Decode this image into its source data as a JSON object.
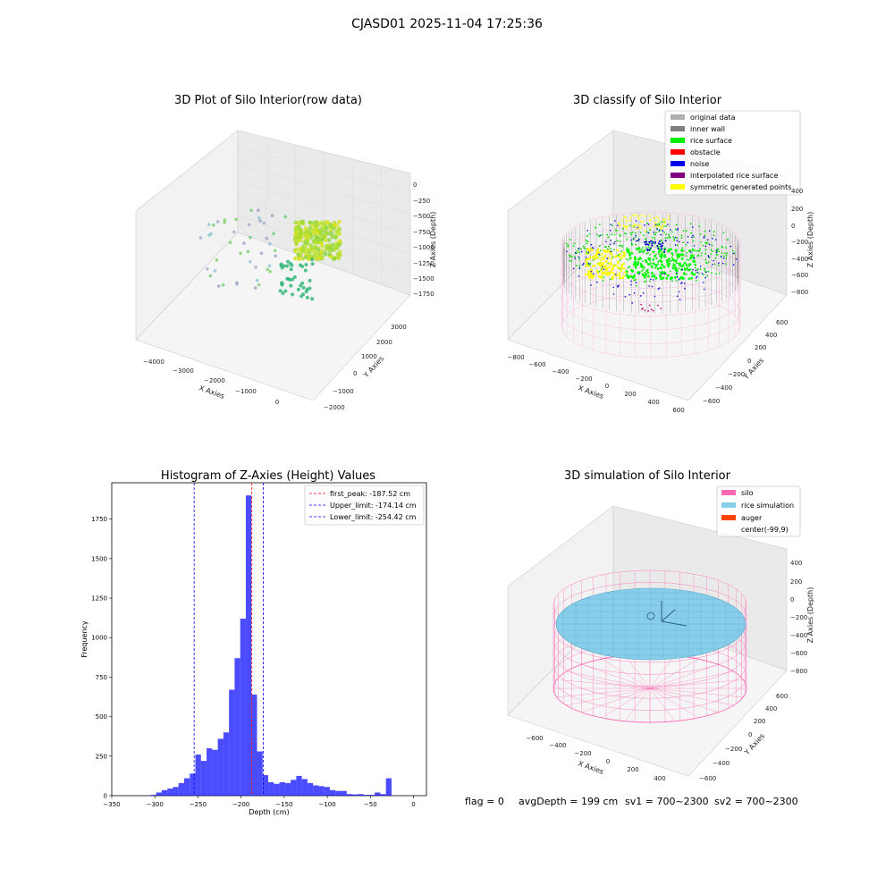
{
  "suptitle": "CJASD01 2025-11-04 17:25:36",
  "footer": {
    "flag": "flag = 0",
    "avg": "avgDepth = 199 cm",
    "sv1": "sv1 = 700~2300",
    "sv2": "sv2 = 700~2300"
  },
  "colors": {
    "hist_bar": "#0000ff",
    "peak_line": "#ff0000",
    "limit_line": "#0000ff",
    "silo_wire": "#ff69b4",
    "rice_sim": "#87ceeb",
    "auger": "#ff4500"
  },
  "plot3d_raw": {
    "title": "3D Plot of Silo Interior(row data)",
    "xlabel": "X Axies",
    "ylabel": "Y Axies",
    "zlabel": "Z Axies (Depth)",
    "xticks": [
      "−4000",
      "−3000",
      "−2000",
      "−1000",
      "0"
    ],
    "yticks": [
      "−2000",
      "−1000",
      "0",
      "1000",
      "2000",
      "3000"
    ],
    "zticks": [
      "0",
      "−250",
      "−500",
      "−750",
      "−1000",
      "−1250",
      "−1500",
      "−1750"
    ]
  },
  "plot3d_classify": {
    "title": "3D classify of Silo Interior",
    "xlabel": "X Axies",
    "ylabel": "Y Axies",
    "zlabel": "Z Axies (Depth)",
    "xticks": [
      "−800",
      "−600",
      "−400",
      "−200",
      "0",
      "200",
      "400",
      "600"
    ],
    "yticks": [
      "−600",
      "−400",
      "−200",
      "0",
      "200",
      "400",
      "600"
    ],
    "zticks": [
      "400",
      "200",
      "0",
      "−200",
      "−400",
      "−600",
      "−800"
    ],
    "legend": [
      {
        "label": "original data",
        "color": "#b0b0b0"
      },
      {
        "label": "inner wall",
        "color": "#808080"
      },
      {
        "label": "rice surface",
        "color": "#00ee00"
      },
      {
        "label": "obstacle",
        "color": "#ff0000"
      },
      {
        "label": "noise",
        "color": "#0000ee"
      },
      {
        "label": "interpolated rice surface",
        "color": "#800080"
      },
      {
        "label": "symmetric generated points",
        "color": "#ffff00"
      }
    ]
  },
  "plot3d_sim": {
    "title": "3D simulation of Silo Interior",
    "xlabel": "X Axies",
    "ylabel": "Y Axies",
    "zlabel": "Z Axies (Depth)",
    "xticks": [
      "−600",
      "−400",
      "−200",
      "0",
      "200",
      "400"
    ],
    "yticks": [
      "−600",
      "−400",
      "−200",
      "0",
      "200",
      "400",
      "600"
    ],
    "zticks": [
      "400",
      "200",
      "0",
      "−200",
      "−400",
      "−600",
      "−800"
    ],
    "legend": [
      {
        "label": "silo",
        "color": "#ff69b4"
      },
      {
        "label": "rice simulation",
        "color": "#87ceeb"
      },
      {
        "label": "auger",
        "color": "#ff4500"
      },
      {
        "label": "center(-99,9)",
        "color": ""
      }
    ]
  },
  "chart_data": {
    "type": "bar",
    "title": "Histogram of Z-Axies (Height) Values",
    "xlabel": "Depth (cm)",
    "ylabel": "Frequency",
    "xlim": [
      -350,
      15
    ],
    "ylim": [
      0,
      1980
    ],
    "xticks": [
      -350,
      -300,
      -250,
      -200,
      -150,
      -100,
      -50,
      0
    ],
    "yticks": [
      0,
      250,
      500,
      750,
      1000,
      1250,
      1500,
      1750
    ],
    "bin_width": 6.5,
    "bin_start": -305,
    "values": [
      5,
      20,
      35,
      45,
      55,
      80,
      110,
      140,
      260,
      220,
      300,
      290,
      360,
      400,
      670,
      870,
      1120,
      1900,
      640,
      280,
      130,
      85,
      75,
      85,
      80,
      100,
      125,
      105,
      80,
      65,
      60,
      55,
      35,
      30,
      30,
      10,
      8,
      10,
      5,
      5,
      20,
      10,
      110
    ],
    "grid": false,
    "vlines": [
      {
        "label": "first_peak: -187.52 cm",
        "x": -187.52,
        "color": "#ff0000"
      },
      {
        "label": "Upper_limit: -174.14 cm",
        "x": -174.14,
        "color": "#0000ff"
      },
      {
        "label": "Lower_limit: -254.42 cm",
        "x": -254.42,
        "color": "#0000ff"
      }
    ],
    "legend_position": "top-right"
  }
}
